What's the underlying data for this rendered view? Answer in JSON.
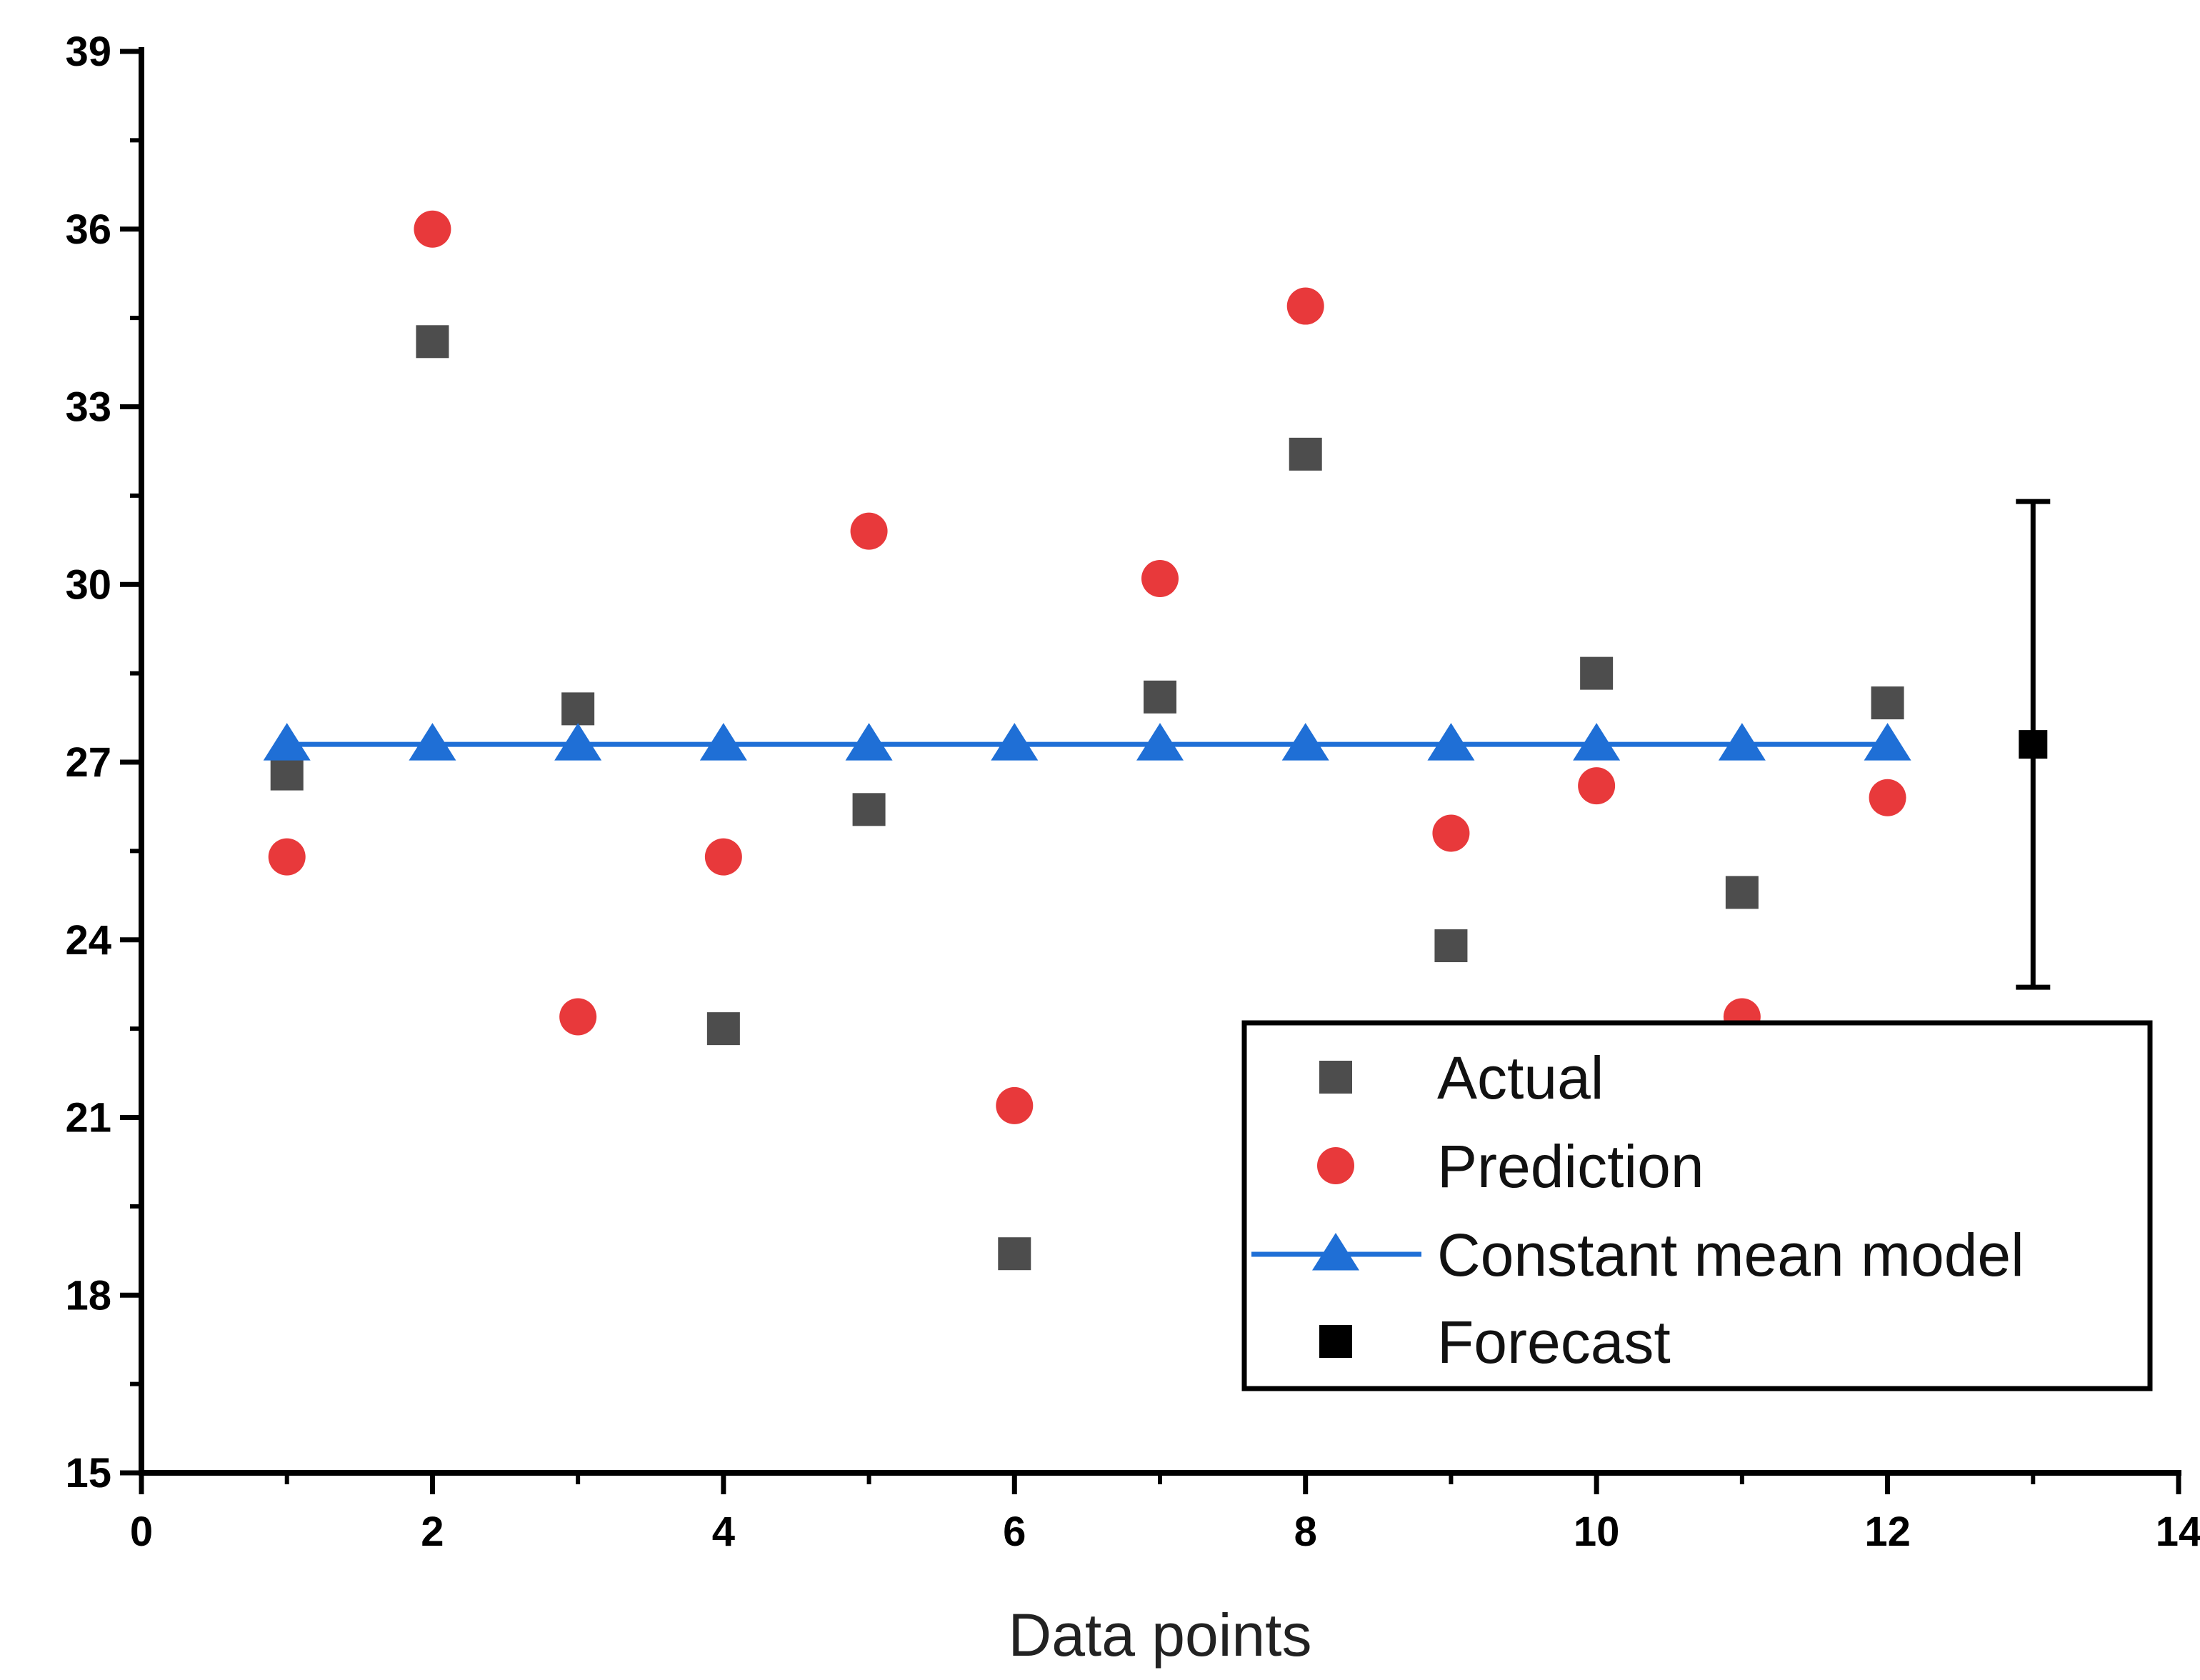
{
  "chart_data": {
    "type": "scatter",
    "title": "",
    "xlabel": "Data points",
    "ylabel": "",
    "xlim": [
      0,
      14
    ],
    "ylim": [
      15,
      39
    ],
    "xticks": [
      0,
      2,
      4,
      6,
      8,
      10,
      12,
      14
    ],
    "yticks": [
      15,
      18,
      21,
      24,
      27,
      30,
      33,
      36,
      39
    ],
    "x_tick_labels": [
      "0",
      "2",
      "4",
      "6",
      "8",
      "10",
      "12",
      "14"
    ],
    "y_tick_labels": [
      "15",
      "18",
      "21",
      "24",
      "27",
      "30",
      "33",
      "36",
      "39"
    ],
    "grid": false,
    "legend_position": "bottom-right",
    "series": [
      {
        "name": "Actual",
        "marker": "square",
        "color": "#4d4d4d",
        "x": [
          1,
          2,
          3,
          4,
          5,
          6,
          7,
          8,
          9,
          10,
          11,
          12
        ],
        "values": [
          26.8,
          34.1,
          27.9,
          22.5,
          26.2,
          18.7,
          28.1,
          32.2,
          23.9,
          28.5,
          24.8,
          28.0
        ]
      },
      {
        "name": "Prediction",
        "marker": "circle",
        "color": "#e8393b",
        "x": [
          1,
          2,
          3,
          4,
          5,
          6,
          7,
          8,
          9,
          10,
          11,
          12
        ],
        "values": [
          25.4,
          36.0,
          22.7,
          25.4,
          30.9,
          21.2,
          30.1,
          34.7,
          25.8,
          26.6,
          22.7,
          26.4
        ]
      },
      {
        "name": "Constant mean model",
        "marker": "triangle",
        "line": true,
        "color": "#1f6fd6",
        "x": [
          1,
          2,
          3,
          4,
          5,
          6,
          7,
          8,
          9,
          10,
          11,
          12
        ],
        "values": [
          27.3,
          27.3,
          27.3,
          27.3,
          27.3,
          27.3,
          27.3,
          27.3,
          27.3,
          27.3,
          27.3,
          27.3
        ]
      },
      {
        "name": "Forecast",
        "marker": "square",
        "color": "#000000",
        "x": [
          13
        ],
        "values": [
          27.3
        ],
        "error_low": [
          23.2
        ],
        "error_high": [
          31.4
        ]
      }
    ]
  }
}
